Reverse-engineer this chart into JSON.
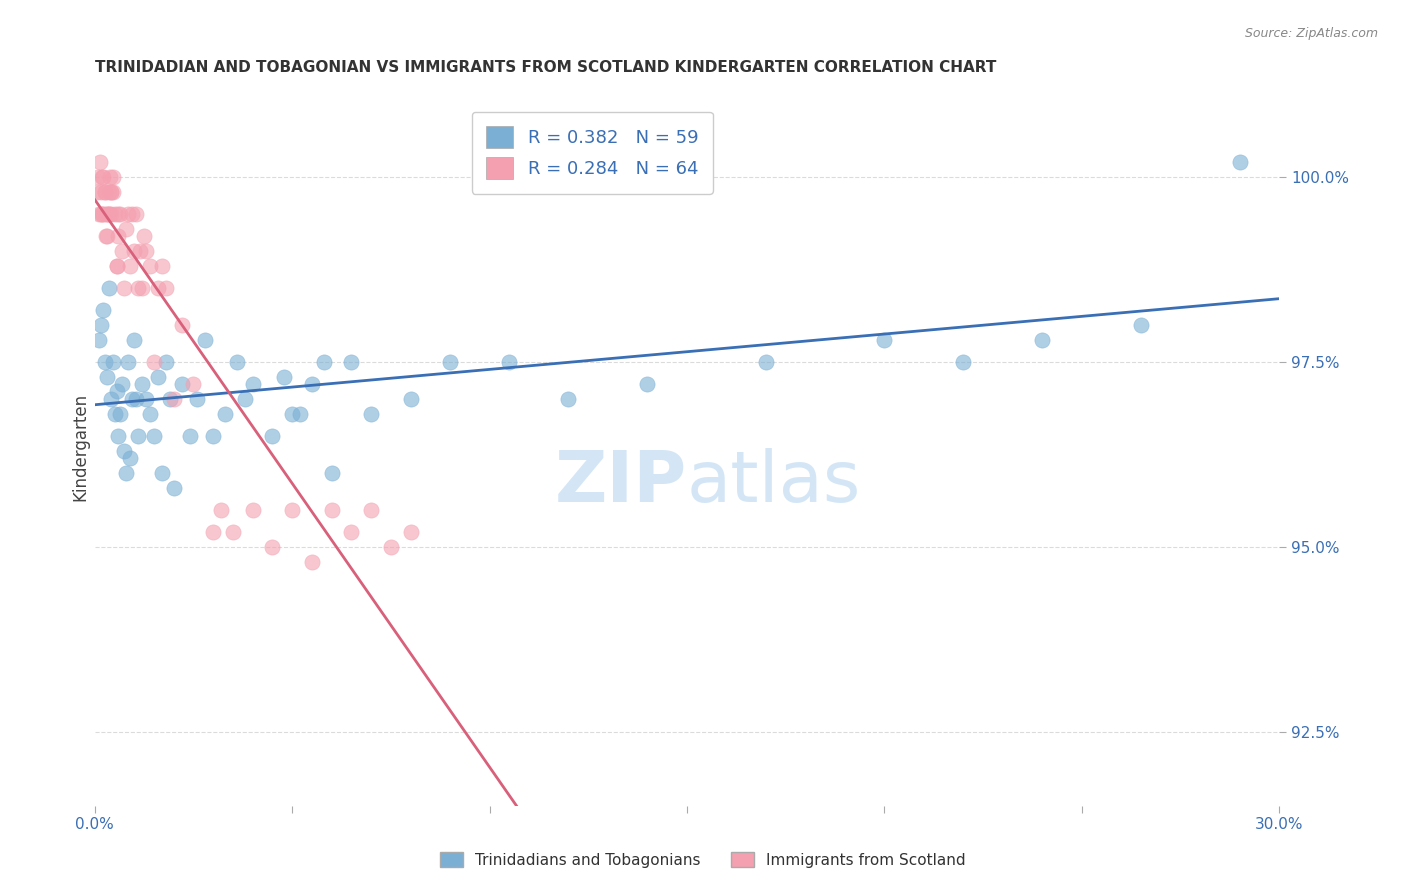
{
  "title": "TRINIDADIAN AND TOBAGONIAN VS IMMIGRANTS FROM SCOTLAND KINDERGARTEN CORRELATION CHART",
  "source": "Source: ZipAtlas.com",
  "ylabel": "Kindergarten",
  "yticks": [
    92.5,
    95.0,
    97.5,
    100.0
  ],
  "ytick_labels": [
    "92.5%",
    "95.0%",
    "97.5%",
    "100.0%"
  ],
  "xmin": 0.0,
  "xmax": 30.0,
  "ymin": 91.5,
  "ymax": 101.2,
  "blue_R": 0.382,
  "blue_N": 59,
  "pink_R": 0.284,
  "pink_N": 64,
  "blue_color": "#7bafd4",
  "pink_color": "#f4a0b0",
  "blue_line_color": "#3a6fb5",
  "pink_line_color": "#d9607a",
  "legend_text_color": "#3a6fb5",
  "title_color": "#333333",
  "grid_color": "#cccccc",
  "watermark_color": "#d0e4f5",
  "blue_x_raw": [
    0.1,
    0.15,
    0.2,
    0.25,
    0.3,
    0.35,
    0.4,
    0.45,
    0.5,
    0.55,
    0.6,
    0.65,
    0.7,
    0.75,
    0.8,
    0.85,
    0.9,
    0.95,
    1.0,
    1.05,
    1.1,
    1.2,
    1.3,
    1.4,
    1.5,
    1.6,
    1.7,
    1.8,
    1.9,
    2.0,
    2.2,
    2.4,
    2.6,
    2.8,
    3.0,
    3.3,
    3.6,
    4.0,
    4.5,
    5.0,
    5.5,
    6.0,
    6.5,
    7.0,
    8.0,
    9.0,
    10.5,
    12.0,
    14.0,
    17.0,
    20.0,
    22.0,
    24.0,
    26.5,
    29.0,
    5.2,
    4.8,
    3.8,
    5.8
  ],
  "blue_y_raw": [
    97.8,
    98.0,
    98.2,
    97.5,
    97.3,
    98.5,
    97.0,
    97.5,
    96.8,
    97.1,
    96.5,
    96.8,
    97.2,
    96.3,
    96.0,
    97.5,
    96.2,
    97.0,
    97.8,
    97.0,
    96.5,
    97.2,
    97.0,
    96.8,
    96.5,
    97.3,
    96.0,
    97.5,
    97.0,
    95.8,
    97.2,
    96.5,
    97.0,
    97.8,
    96.5,
    96.8,
    97.5,
    97.2,
    96.5,
    96.8,
    97.2,
    96.0,
    97.5,
    96.8,
    97.0,
    97.5,
    97.5,
    97.0,
    97.2,
    97.5,
    97.8,
    97.5,
    97.8,
    98.0,
    100.2,
    96.8,
    97.3,
    97.0,
    97.5
  ],
  "pink_x_raw": [
    0.05,
    0.08,
    0.1,
    0.12,
    0.15,
    0.18,
    0.2,
    0.22,
    0.25,
    0.28,
    0.3,
    0.32,
    0.35,
    0.38,
    0.4,
    0.42,
    0.45,
    0.5,
    0.55,
    0.6,
    0.65,
    0.7,
    0.75,
    0.8,
    0.85,
    0.9,
    0.95,
    1.0,
    1.05,
    1.1,
    1.15,
    1.2,
    1.25,
    1.3,
    1.4,
    1.5,
    1.6,
    1.7,
    1.8,
    2.0,
    2.2,
    2.5,
    3.0,
    3.2,
    3.5,
    4.0,
    4.5,
    5.0,
    5.5,
    6.0,
    6.5,
    7.0,
    7.5,
    8.0,
    0.15,
    0.25,
    0.35,
    0.42,
    0.6,
    0.55,
    0.45,
    0.35,
    0.28,
    0.18
  ],
  "pink_y_raw": [
    99.8,
    100.0,
    99.5,
    100.2,
    99.8,
    99.5,
    100.0,
    99.5,
    99.8,
    99.5,
    99.2,
    99.5,
    99.8,
    100.0,
    99.5,
    99.8,
    100.0,
    99.5,
    98.8,
    99.2,
    99.5,
    99.0,
    98.5,
    99.3,
    99.5,
    98.8,
    99.5,
    99.0,
    99.5,
    98.5,
    99.0,
    98.5,
    99.2,
    99.0,
    98.8,
    97.5,
    98.5,
    98.8,
    98.5,
    97.0,
    98.0,
    97.2,
    95.2,
    95.5,
    95.2,
    95.5,
    95.0,
    95.5,
    94.8,
    95.5,
    95.2,
    95.5,
    95.0,
    95.2,
    99.5,
    99.8,
    99.5,
    99.8,
    99.5,
    98.8,
    99.8,
    99.5,
    99.2,
    100.0
  ]
}
